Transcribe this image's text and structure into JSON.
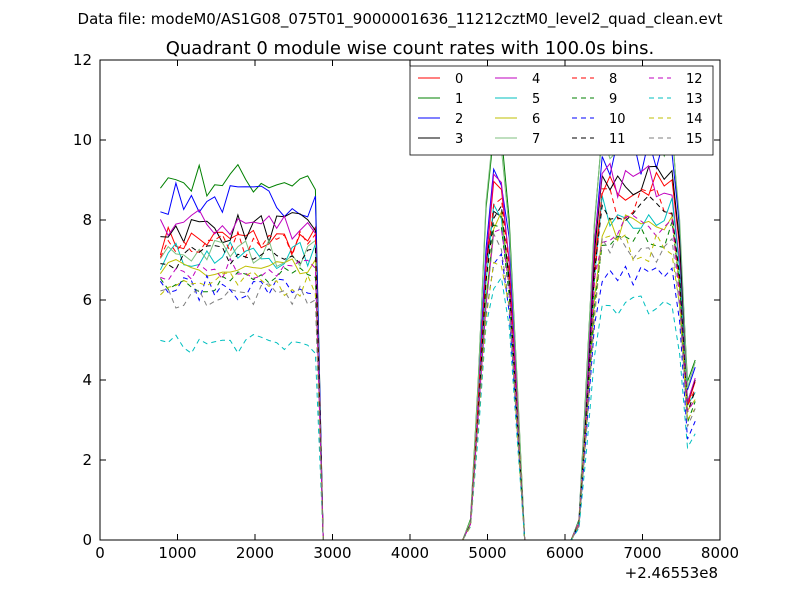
{
  "figure": {
    "suptitle": "Data file: modeM0/AS1G08_075T01_9000001636_11212cztM0_level2_quad_clean.evt"
  },
  "chart_data": {
    "type": "line",
    "title": "Quadrant 0 module wise count rates with 100.0s bins.",
    "xlabel": "",
    "ylabel": "",
    "x_offset_label": "+2.46553e8",
    "xlim": [
      0,
      8000
    ],
    "ylim": [
      0,
      12
    ],
    "x_ticks": [
      0,
      1000,
      2000,
      3000,
      4000,
      5000,
      6000,
      7000,
      8000
    ],
    "y_ticks": [
      0,
      2,
      4,
      6,
      8,
      10,
      12
    ],
    "grid": false,
    "legend_placement": "top-right",
    "legend_columns": 4,
    "segments": [
      {
        "x_start": 780,
        "x_end": 2880
      },
      {
        "x_start": 2880,
        "x_end": 4780
      },
      {
        "x_start": 4780,
        "x_end": 5480
      },
      {
        "x_start": 5480,
        "x_end": 6180
      },
      {
        "x_start": 6180,
        "x_end": 7680
      }
    ],
    "series": [
      {
        "name": "0",
        "color": "#ff0000",
        "dash": "solid",
        "levels": [
          7.5,
          8.6,
          8.8
        ]
      },
      {
        "name": "1",
        "color": "#008000",
        "dash": "solid",
        "levels": [
          9.0,
          10.0,
          10.0
        ]
      },
      {
        "name": "2",
        "color": "#0000ff",
        "dash": "solid",
        "levels": [
          8.5,
          9.1,
          9.6
        ]
      },
      {
        "name": "3",
        "color": "#000000",
        "dash": "solid",
        "levels": [
          7.8,
          8.3,
          8.9
        ]
      },
      {
        "name": "4",
        "color": "#bf00bf",
        "dash": "solid",
        "levels": [
          7.9,
          9.0,
          9.0
        ]
      },
      {
        "name": "5",
        "color": "#00bfbf",
        "dash": "solid",
        "levels": [
          7.1,
          8.3,
          8.2
        ]
      },
      {
        "name": "6",
        "color": "#bfbf00",
        "dash": "solid",
        "levels": [
          6.7,
          7.9,
          7.8
        ]
      },
      {
        "name": "7",
        "color": "#7fbf7f",
        "dash": "solid",
        "levels": [
          7.2,
          10.1,
          9.9
        ]
      },
      {
        "name": "8",
        "color": "#ff0000",
        "dash": "dashed",
        "levels": [
          7.4,
          8.2,
          8.4
        ]
      },
      {
        "name": "9",
        "color": "#008000",
        "dash": "dashed",
        "levels": [
          6.5,
          7.7,
          7.7
        ]
      },
      {
        "name": "10",
        "color": "#0000ff",
        "dash": "dashed",
        "levels": [
          6.3,
          6.9,
          6.6
        ]
      },
      {
        "name": "11",
        "color": "#000000",
        "dash": "dashed",
        "levels": [
          7.1,
          8.0,
          8.3
        ]
      },
      {
        "name": "12",
        "color": "#bf00bf",
        "dash": "dashed",
        "levels": [
          6.8,
          7.6,
          7.8
        ]
      },
      {
        "name": "13",
        "color": "#00bfbf",
        "dash": "dashed",
        "levels": [
          4.9,
          6.4,
          5.9
        ]
      },
      {
        "name": "14",
        "color": "#bfbf00",
        "dash": "dashed",
        "levels": [
          6.4,
          7.1,
          7.3
        ]
      },
      {
        "name": "15",
        "color": "#7f7f7f",
        "dash": "dashed",
        "levels": [
          6.1,
          7.3,
          7.3
        ]
      }
    ]
  }
}
